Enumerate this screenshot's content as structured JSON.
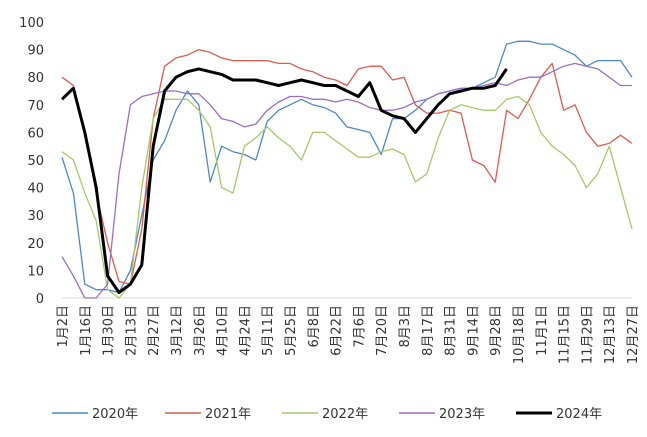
{
  "chart_data": {
    "type": "line",
    "categories": [
      "1月2日",
      null,
      "1月16日",
      null,
      "1月30日",
      null,
      "2月13日",
      null,
      "2月27日",
      null,
      "3月12日",
      null,
      "3月26日",
      null,
      "4月10日",
      null,
      "4月24日",
      null,
      "5月11日",
      null,
      "5月25日",
      null,
      "6月8日",
      null,
      "6月22日",
      null,
      "7月6日",
      null,
      "7月20日",
      null,
      "8月3日",
      null,
      "8月17日",
      null,
      "8月31日",
      null,
      "9月14日",
      null,
      "9月28日",
      null,
      "10月18日",
      null,
      "11月1日",
      null,
      "11月15日",
      null,
      "11月29日",
      null,
      "12月13日",
      null,
      "12月27日"
    ],
    "series": [
      {
        "name": "2020年",
        "color": "#4e88c7",
        "values": [
          51,
          38,
          5,
          3,
          3,
          2,
          10,
          30,
          50,
          57,
          68,
          75,
          70,
          42,
          55,
          53,
          52,
          50,
          64,
          68,
          70,
          72,
          70,
          69,
          67,
          62,
          61,
          60,
          52,
          65,
          65,
          68,
          72,
          74,
          75,
          76,
          76,
          78,
          80,
          92,
          93,
          93,
          92,
          92,
          90,
          88,
          84,
          86,
          86,
          86,
          80
        ]
      },
      {
        "name": "2021年",
        "color": "#e05a4e",
        "values": [
          80,
          77,
          60,
          38,
          20,
          6,
          5,
          25,
          65,
          84,
          87,
          88,
          90,
          89,
          87,
          86,
          86,
          86,
          86,
          85,
          85,
          83,
          82,
          80,
          79,
          77,
          83,
          84,
          84,
          79,
          80,
          70,
          67,
          67,
          68,
          67,
          50,
          48,
          42,
          68,
          65,
          72,
          80,
          85,
          68,
          70,
          60,
          55,
          56,
          59,
          56
        ]
      },
      {
        "name": "2022年",
        "color": "#a5c96a",
        "values": [
          53,
          50,
          38,
          28,
          3,
          0,
          5,
          40,
          65,
          72,
          72,
          72,
          68,
          62,
          40,
          38,
          55,
          58,
          62,
          58,
          55,
          50,
          60,
          60,
          57,
          54,
          51,
          51,
          53,
          54,
          52,
          42,
          45,
          58,
          68,
          70,
          69,
          68,
          68,
          72,
          73,
          70,
          60,
          55,
          52,
          48,
          40,
          45,
          55,
          40,
          25
        ]
      },
      {
        "name": "2023年",
        "color": "#9b6fc2",
        "values": [
          15,
          8,
          0,
          0,
          5,
          45,
          70,
          73,
          74,
          75,
          75,
          74,
          74,
          70,
          65,
          64,
          62,
          63,
          68,
          71,
          73,
          73,
          72,
          72,
          71,
          72,
          71,
          69,
          68,
          68,
          69,
          71,
          72,
          74,
          75,
          76,
          76,
          77,
          78,
          77,
          79,
          80,
          80,
          82,
          84,
          85,
          84,
          83,
          80,
          77,
          77
        ]
      },
      {
        "name": "2024年",
        "color": "#000000",
        "width": 3,
        "values": [
          72,
          76,
          60,
          40,
          8,
          2,
          5,
          12,
          55,
          75,
          80,
          82,
          83,
          82,
          81,
          79,
          79,
          79,
          78,
          77,
          78,
          79,
          78,
          77,
          77,
          75,
          73,
          78,
          68,
          66,
          65,
          60,
          65,
          70,
          74,
          75,
          76,
          76,
          77,
          83,
          null,
          null,
          null,
          null,
          null,
          null,
          null,
          null,
          null,
          null,
          null
        ]
      }
    ],
    "ylim": [
      0,
      100
    ],
    "yticks": [
      0,
      10,
      20,
      30,
      40,
      50,
      60,
      70,
      80,
      90,
      100
    ],
    "legend": "bottom"
  }
}
